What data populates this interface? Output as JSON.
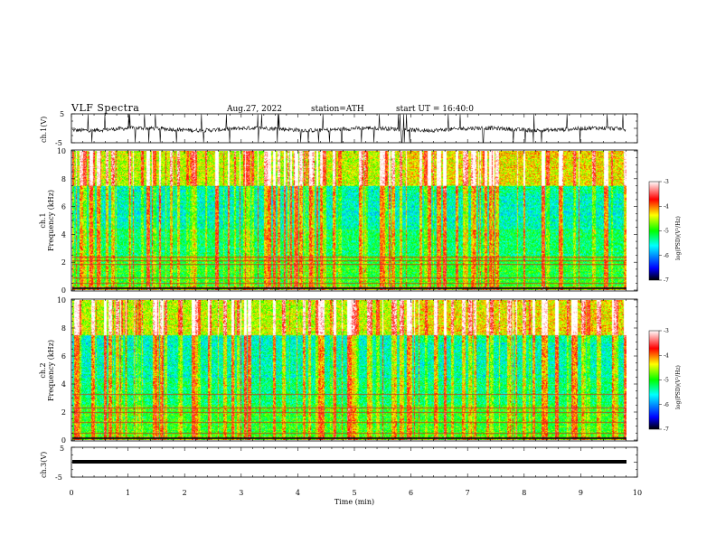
{
  "header": {
    "title": "VLF  Spectra",
    "date": "Aug.27, 2022",
    "station": "station=ATH",
    "start": "start  UT  =    16:40:0"
  },
  "chart_data": [
    {
      "type": "line",
      "panel": "ch1-waveform",
      "ylabel": "ch.1(V)",
      "ytick_labels": [
        "5",
        "-5"
      ],
      "ylim": [
        -5,
        5
      ],
      "x_range": [
        0,
        10
      ],
      "series": [
        {
          "values_summary": "noisy waveform around -0.3 V with frequent spikes"
        }
      ]
    },
    {
      "type": "heatmap",
      "panel": "ch1-spectrogram",
      "ylabel": "ch.1\nFrequency (kHz)",
      "ytick_labels": [
        "0",
        "2",
        "4",
        "6",
        "8",
        "10"
      ],
      "ylim": [
        0,
        10
      ],
      "x_range": [
        0,
        9.8
      ],
      "colorbar": {
        "label": "log(PSD)(V²/Hz)",
        "range": [
          -7,
          -3
        ],
        "tick_labels": [
          "-3",
          "-4",
          "-5",
          "-6",
          "-7"
        ]
      },
      "lines_khz": [
        0.5,
        0.9,
        1.9,
        2.1,
        2.4
      ]
    },
    {
      "type": "heatmap",
      "panel": "ch2-spectrogram",
      "ylabel": "ch.2\nFrequency (kHz)",
      "ytick_labels": [
        "0",
        "2",
        "4",
        "6",
        "8",
        "10"
      ],
      "ylim": [
        0,
        10
      ],
      "x_range": [
        0,
        9.8
      ],
      "colorbar": {
        "label": "log(PSD)(V²/Hz)",
        "range": [
          -7,
          -3
        ],
        "tick_labels": [
          "-3",
          "-4",
          "-5",
          "-6",
          "-7"
        ]
      },
      "lines_khz": [
        0.5,
        1.3,
        2.0,
        2.3,
        3.3
      ]
    },
    {
      "type": "line",
      "panel": "ch3-waveform",
      "ylabel": "ch.3(V)",
      "ytick_labels": [
        "5",
        "-5"
      ],
      "ylim": [
        -5,
        5
      ],
      "x_range": [
        0,
        10
      ],
      "series": [
        {
          "values_summary": "flat thick trace at about -1.5 V"
        }
      ]
    }
  ],
  "xaxis": {
    "label": "Time  (min)",
    "tick_labels": [
      "0",
      "1",
      "2",
      "3",
      "4",
      "5",
      "6",
      "7",
      "8",
      "9",
      "10"
    ],
    "range": [
      0,
      10
    ]
  },
  "colors": {
    "colormap": [
      "#000000",
      "#0000ff",
      "#00ffff",
      "#00ff00",
      "#ffff00",
      "#ff0000",
      "#ffffff"
    ]
  }
}
